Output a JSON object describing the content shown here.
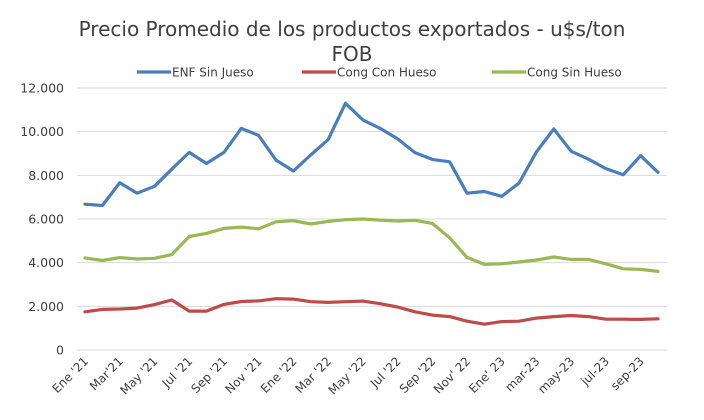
{
  "chart_data": {
    "type": "line",
    "title_line1": "Precio Promedio de los productos exportados - u$s/ton",
    "title_line2": "FOB",
    "xlabel": "",
    "ylabel": "",
    "ylim": [
      0,
      12000
    ],
    "yticks": [
      0,
      2000,
      4000,
      6000,
      8000,
      10000,
      12000
    ],
    "ytick_labels": [
      "0",
      "2.000",
      "4.000",
      "6.000",
      "8.000",
      "10.000",
      "12.000"
    ],
    "grid": true,
    "legend_position": "top",
    "x": [
      "Ene '21",
      "Feb '21",
      "Mar '21",
      "Abr '21",
      "May '21",
      "Jun '21",
      "Jul '21",
      "Ago '21",
      "Sep '21",
      "Oct '21",
      "Nov '21",
      "Dic '21",
      "Ene '22",
      "Feb '22",
      "Mar '22",
      "Abr '22",
      "May '22",
      "Jun '22",
      "Jul '22",
      "Ago '22",
      "Sep '22",
      "Oct '22",
      "Nov '22",
      "Dic '22",
      "Ene '23",
      "Feb '23",
      "Mar '23",
      "Abr '23",
      "May '23",
      "Jun '23",
      "Jul '23",
      "Ago '23",
      "Sep '23",
      "Oct '23"
    ],
    "xtick_labels": [
      {
        "index": 0,
        "label": "Ene '21"
      },
      {
        "index": 2,
        "label": "Mar'21"
      },
      {
        "index": 4,
        "label": "May '21"
      },
      {
        "index": 6,
        "label": "Jul '21"
      },
      {
        "index": 8,
        "label": "Sep '21"
      },
      {
        "index": 10,
        "label": "Nov '21"
      },
      {
        "index": 12,
        "label": "Ene '22"
      },
      {
        "index": 14,
        "label": "Mar '22"
      },
      {
        "index": 16,
        "label": "May '22"
      },
      {
        "index": 18,
        "label": "Jul '22"
      },
      {
        "index": 20,
        "label": "Sep '22"
      },
      {
        "index": 22,
        "label": "Nov' 22"
      },
      {
        "index": 24,
        "label": "Ene' 23"
      },
      {
        "index": 26,
        "label": "mar-23"
      },
      {
        "index": 28,
        "label": "may-23"
      },
      {
        "index": 30,
        "label": "jul-23"
      },
      {
        "index": 32,
        "label": "sep-23"
      }
    ],
    "series": [
      {
        "name": "ENF Sin Jueso",
        "color": "#4a7ebb",
        "values": [
          6680,
          6620,
          7660,
          7180,
          7500,
          8280,
          9050,
          8540,
          9050,
          10150,
          9830,
          8700,
          8200,
          8930,
          9630,
          11300,
          10540,
          10150,
          9680,
          9040,
          8730,
          8620,
          7180,
          7260,
          7040,
          7650,
          9080,
          10120,
          9100,
          8740,
          8310,
          8030,
          8900,
          8140
        ]
      },
      {
        "name": "Cong Con Hueso",
        "color": "#be4b48",
        "values": [
          1750,
          1860,
          1880,
          1920,
          2080,
          2290,
          1780,
          1780,
          2090,
          2220,
          2250,
          2350,
          2330,
          2210,
          2180,
          2210,
          2240,
          2120,
          1970,
          1750,
          1600,
          1530,
          1320,
          1180,
          1300,
          1320,
          1460,
          1530,
          1580,
          1530,
          1410,
          1410,
          1400,
          1430
        ]
      },
      {
        "name": "Cong Sin Hueso",
        "color": "#98b954",
        "values": [
          4220,
          4100,
          4230,
          4170,
          4200,
          4370,
          5200,
          5340,
          5570,
          5630,
          5550,
          5870,
          5920,
          5770,
          5890,
          5970,
          6000,
          5950,
          5910,
          5940,
          5800,
          5140,
          4240,
          3920,
          3950,
          4030,
          4120,
          4260,
          4150,
          4150,
          3950,
          3720,
          3690,
          3600
        ]
      }
    ]
  }
}
